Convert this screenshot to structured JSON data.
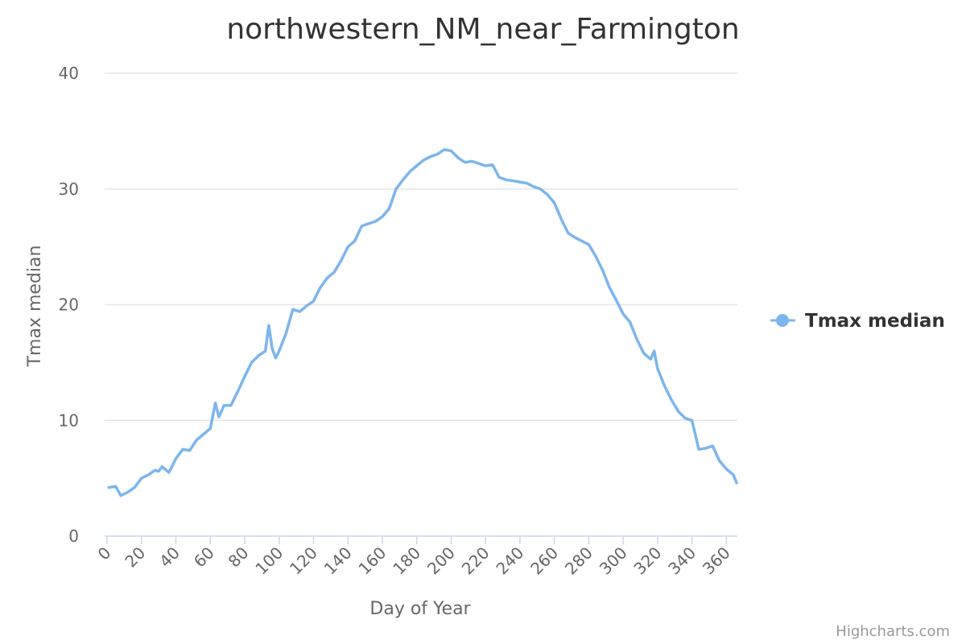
{
  "chart_data": {
    "type": "line",
    "title": "northwestern_NM_near_Farmington",
    "xlabel": "Day of Year",
    "ylabel": "Tmax median",
    "xlim": [
      0,
      365
    ],
    "ylim": [
      0,
      40
    ],
    "x_ticks": [
      0,
      20,
      40,
      60,
      80,
      100,
      120,
      140,
      160,
      180,
      200,
      220,
      240,
      260,
      280,
      300,
      320,
      340,
      360
    ],
    "y_ticks": [
      0,
      10,
      20,
      30,
      40
    ],
    "grid": true,
    "legend_position": "right",
    "series": [
      {
        "name": "Tmax median",
        "color": "#7cb5ec",
        "x": [
          1,
          5,
          8,
          12,
          16,
          20,
          24,
          28,
          30,
          32,
          36,
          40,
          44,
          48,
          52,
          56,
          60,
          63,
          65,
          68,
          72,
          76,
          80,
          84,
          88,
          92,
          94,
          96,
          98,
          100,
          104,
          108,
          112,
          116,
          120,
          124,
          128,
          132,
          136,
          140,
          144,
          148,
          152,
          156,
          160,
          164,
          168,
          172,
          176,
          180,
          184,
          188,
          192,
          196,
          200,
          204,
          208,
          212,
          216,
          220,
          224,
          228,
          232,
          236,
          240,
          244,
          248,
          252,
          256,
          260,
          264,
          268,
          272,
          276,
          280,
          284,
          288,
          292,
          296,
          300,
          304,
          308,
          312,
          316,
          318,
          320,
          324,
          328,
          332,
          336,
          340,
          344,
          348,
          352,
          356,
          360,
          364,
          366
        ],
        "y": [
          4.2,
          4.3,
          3.5,
          3.8,
          4.2,
          5.0,
          5.3,
          5.7,
          5.6,
          6.0,
          5.5,
          6.7,
          7.5,
          7.4,
          8.3,
          8.8,
          9.3,
          11.5,
          10.3,
          11.3,
          11.3,
          12.5,
          13.8,
          15.0,
          15.6,
          16.0,
          18.2,
          16.2,
          15.4,
          16.0,
          17.5,
          19.6,
          19.4,
          19.9,
          20.3,
          21.5,
          22.3,
          22.8,
          23.8,
          25.0,
          25.5,
          26.8,
          27.0,
          27.2,
          27.6,
          28.3,
          30.0,
          30.8,
          31.5,
          32.0,
          32.5,
          32.8,
          33.0,
          33.4,
          33.3,
          32.7,
          32.3,
          32.4,
          32.2,
          32.0,
          32.1,
          31.0,
          30.8,
          30.7,
          30.6,
          30.5,
          30.2,
          30.0,
          29.5,
          28.8,
          27.4,
          26.2,
          25.8,
          25.5,
          25.2,
          24.2,
          23.0,
          21.5,
          20.4,
          19.2,
          18.5,
          17.0,
          15.8,
          15.3,
          16.0,
          14.5,
          13.0,
          11.8,
          10.8,
          10.2,
          10.0,
          7.5,
          7.6,
          7.8,
          6.5,
          5.8,
          5.3,
          4.6
        ]
      }
    ]
  },
  "credits": "Highcharts.com"
}
